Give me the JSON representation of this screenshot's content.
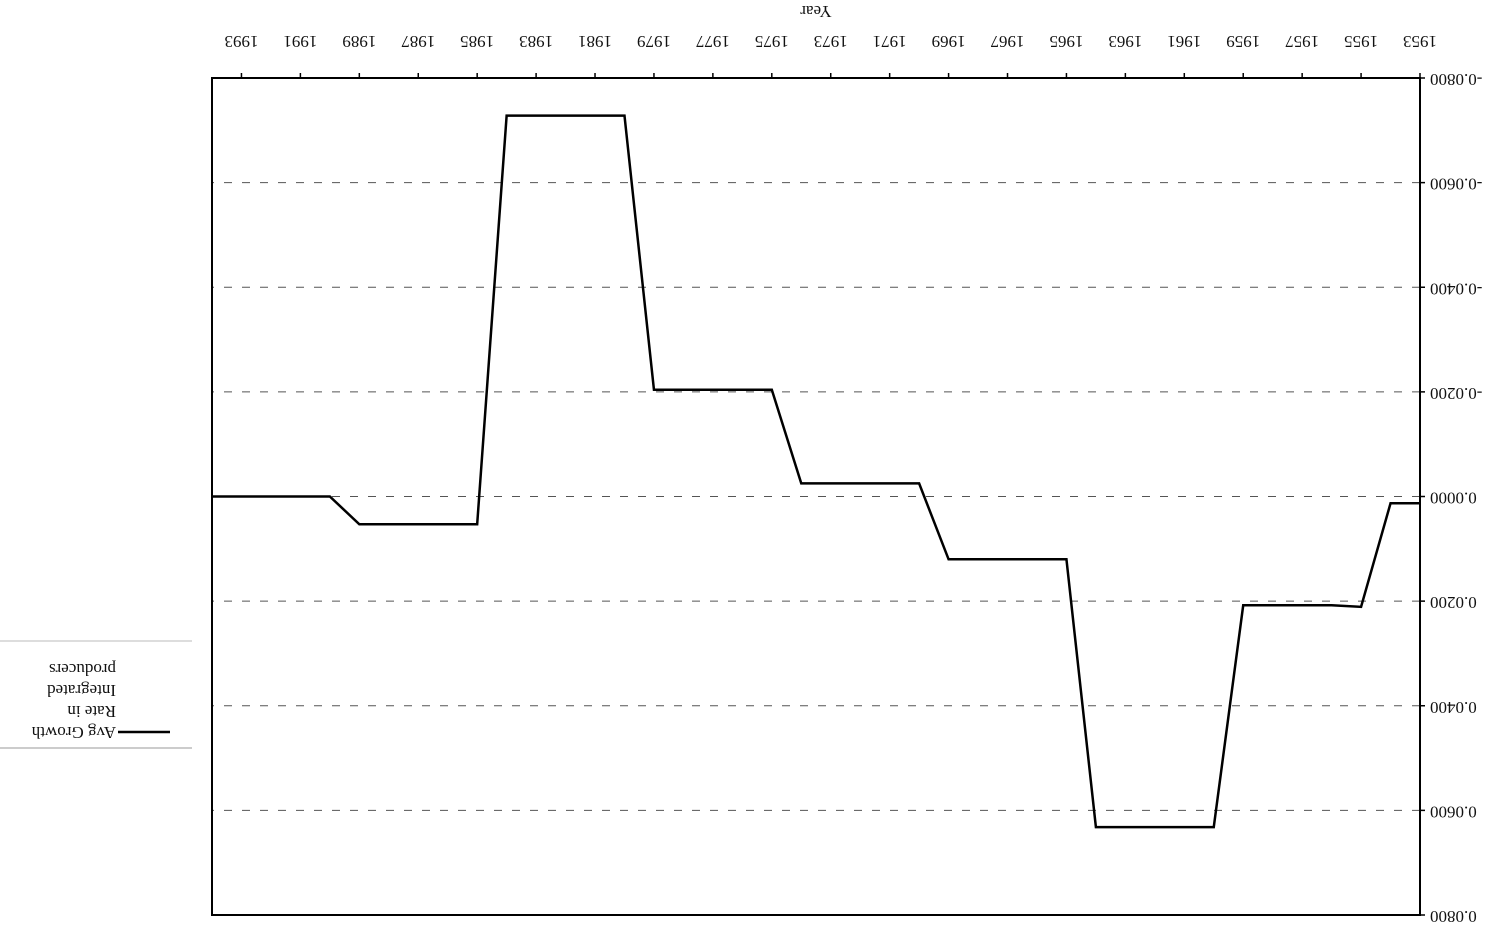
{
  "chart_data": {
    "type": "line",
    "x_label": "Year",
    "x": [
      1953,
      1954,
      1955,
      1956,
      1957,
      1958,
      1959,
      1960,
      1961,
      1962,
      1963,
      1964,
      1965,
      1966,
      1967,
      1968,
      1969,
      1970,
      1971,
      1972,
      1973,
      1974,
      1975,
      1976,
      1977,
      1978,
      1979,
      1980,
      1981,
      1982,
      1983,
      1984,
      1985,
      1986,
      1987,
      1988,
      1989,
      1990,
      1991,
      1992,
      1993,
      1994
    ],
    "series": [
      {
        "name": "Avg Growth Rate in Integrated producers",
        "color": "#000000",
        "values": [
          0.0013,
          0.0013,
          0.0211,
          0.0208,
          0.0208,
          0.0208,
          0.0208,
          0.0632,
          0.0632,
          0.0632,
          0.0632,
          0.0632,
          0.012,
          0.012,
          0.012,
          0.012,
          0.012,
          -0.0025,
          -0.0025,
          -0.0025,
          -0.0025,
          -0.0025,
          -0.0204,
          -0.0204,
          -0.0204,
          -0.0204,
          -0.0204,
          -0.0728,
          -0.0728,
          -0.0728,
          -0.0728,
          -0.0728,
          0.0053,
          0.0053,
          0.0053,
          0.0053,
          0.0053,
          0,
          0,
          0,
          0,
          0
        ]
      }
    ],
    "xlim": [
      1953,
      1994
    ],
    "xticks": [
      1953,
      1955,
      1957,
      1959,
      1961,
      1963,
      1965,
      1967,
      1969,
      1971,
      1973,
      1975,
      1977,
      1979,
      1981,
      1983,
      1985,
      1987,
      1989,
      1991,
      1993
    ],
    "ylim": [
      -0.08,
      0.08
    ],
    "yticks": [
      {
        "value": -0.08,
        "label": "-0.0800"
      },
      {
        "value": -0.06,
        "label": "-0.0600"
      },
      {
        "value": -0.04,
        "label": "-0.0400"
      },
      {
        "value": -0.02,
        "label": "-0.0200"
      },
      {
        "value": 0,
        "label": "0.0000"
      },
      {
        "value": 0.02,
        "label": "0.0200"
      },
      {
        "value": 0.04,
        "label": "0.0400"
      },
      {
        "value": 0.06,
        "label": "0.0600"
      },
      {
        "value": 0.08,
        "label": "0.0800"
      }
    ],
    "grid": true,
    "legend": "right"
  }
}
